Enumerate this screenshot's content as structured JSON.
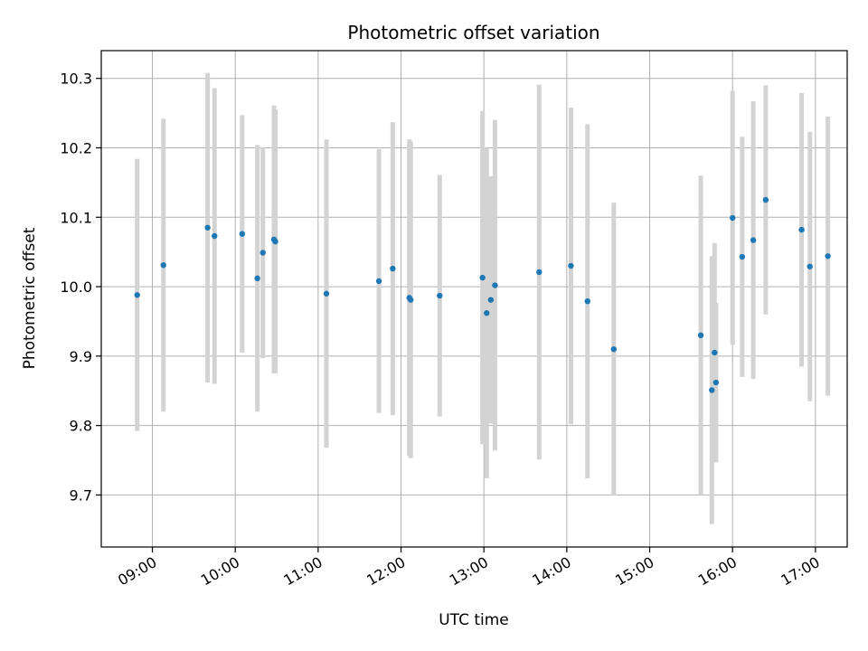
{
  "chart_data": {
    "type": "scatter",
    "title": "Photometric offset variation",
    "xlabel": "UTC time",
    "ylabel": "Photometric offset",
    "grid": true,
    "xlim": [
      "08:23",
      "17:23"
    ],
    "ylim": [
      9.625,
      10.34
    ],
    "x_ticks": [
      "09:00",
      "10:00",
      "11:00",
      "12:00",
      "13:00",
      "14:00",
      "15:00",
      "16:00",
      "17:00"
    ],
    "y_ticks": [
      9.7,
      9.8,
      9.9,
      10.0,
      10.1,
      10.2,
      10.3
    ],
    "colors": {
      "point": "#1f77b4",
      "errorbar": "#d3d3d3",
      "grid": "#b0b0b0"
    },
    "series": [
      {
        "points": [
          {
            "x": "08:49",
            "y": 9.988,
            "err": 0.196
          },
          {
            "x": "09:08",
            "y": 10.031,
            "err": 0.211
          },
          {
            "x": "09:40",
            "y": 10.085,
            "err": 0.223
          },
          {
            "x": "09:45",
            "y": 10.073,
            "err": 0.213
          },
          {
            "x": "10:05",
            "y": 10.076,
            "err": 0.171
          },
          {
            "x": "10:16",
            "y": 10.012,
            "err": 0.192
          },
          {
            "x": "10:20",
            "y": 10.049,
            "err": 0.152
          },
          {
            "x": "10:28",
            "y": 10.068,
            "err": 0.193
          },
          {
            "x": "10:29",
            "y": 10.065,
            "err": 0.19
          },
          {
            "x": "11:06",
            "y": 9.99,
            "err": 0.222
          },
          {
            "x": "11:44",
            "y": 10.008,
            "err": 0.19
          },
          {
            "x": "11:54",
            "y": 10.026,
            "err": 0.211
          },
          {
            "x": "12:06",
            "y": 9.984,
            "err": 0.228
          },
          {
            "x": "12:07",
            "y": 9.981,
            "err": 0.228
          },
          {
            "x": "12:28",
            "y": 9.987,
            "err": 0.174
          },
          {
            "x": "12:59",
            "y": 10.013,
            "err": 0.24
          },
          {
            "x": "13:02",
            "y": 9.962,
            "err": 0.238
          },
          {
            "x": "13:05",
            "y": 9.981,
            "err": 0.178
          },
          {
            "x": "13:08",
            "y": 10.002,
            "err": 0.238
          },
          {
            "x": "13:40",
            "y": 10.021,
            "err": 0.27
          },
          {
            "x": "14:03",
            "y": 10.03,
            "err": 0.228
          },
          {
            "x": "14:15",
            "y": 9.979,
            "err": 0.255
          },
          {
            "x": "14:34",
            "y": 9.91,
            "err": 0.211
          },
          {
            "x": "15:37",
            "y": 9.93,
            "err": 0.23
          },
          {
            "x": "15:45",
            "y": 9.851,
            "err": 0.193
          },
          {
            "x": "15:47",
            "y": 9.905,
            "err": 0.158
          },
          {
            "x": "15:48",
            "y": 9.862,
            "err": 0.115
          },
          {
            "x": "16:00",
            "y": 10.099,
            "err": 0.183
          },
          {
            "x": "16:07",
            "y": 10.043,
            "err": 0.173
          },
          {
            "x": "16:15",
            "y": 10.067,
            "err": 0.2
          },
          {
            "x": "16:24",
            "y": 10.125,
            "err": 0.165
          },
          {
            "x": "16:50",
            "y": 10.082,
            "err": 0.197
          },
          {
            "x": "16:56",
            "y": 10.029,
            "err": 0.194
          },
          {
            "x": "17:09",
            "y": 10.044,
            "err": 0.201
          }
        ]
      }
    ]
  }
}
